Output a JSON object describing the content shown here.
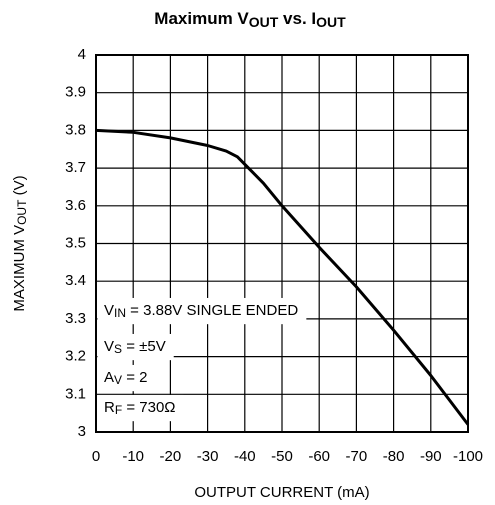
{
  "chart_data": {
    "type": "line",
    "title": [
      {
        "text": "Maximum V"
      },
      {
        "text": "OUT",
        "sub": true
      },
      {
        "text": " vs. I"
      },
      {
        "text": "OUT",
        "sub": true
      }
    ],
    "x_label": [
      {
        "text": "OUTPUT CURRENT (mA)"
      }
    ],
    "y_label": [
      {
        "text": "MAXIMUM V"
      },
      {
        "text": "OUT",
        "sub": true
      },
      {
        "text": " (V)"
      }
    ],
    "annotations": [
      [
        {
          "text": "V"
        },
        {
          "text": "IN",
          "sub": true
        },
        {
          "text": " = 3.88V SINGLE ENDED"
        }
      ],
      [
        {
          "text": "V"
        },
        {
          "text": "S",
          "sub": true
        },
        {
          "text": " = ±5V"
        }
      ],
      [
        {
          "text": "A"
        },
        {
          "text": "V",
          "sub": true
        },
        {
          "text": " = 2"
        }
      ],
      [
        {
          "text": "R"
        },
        {
          "text": "F",
          "sub": true
        },
        {
          "text": " = 730Ω"
        }
      ]
    ],
    "x": [
      0,
      -10,
      -20,
      -30,
      -35,
      -38,
      -40,
      -45,
      -50,
      -60,
      -70,
      -80,
      -90,
      -100
    ],
    "values": [
      3.8,
      3.795,
      3.78,
      3.76,
      3.745,
      3.73,
      3.71,
      3.66,
      3.6,
      3.49,
      3.385,
      3.27,
      3.15,
      3.02
    ],
    "color": "#000000",
    "xlim": [
      0,
      -100
    ],
    "xticks": [
      0,
      -10,
      -20,
      -30,
      -40,
      -50,
      -60,
      -70,
      -80,
      -90,
      -100
    ],
    "ylim": [
      3,
      4
    ],
    "yticks": [
      3,
      3.1,
      3.2,
      3.3,
      3.4,
      3.5,
      3.6,
      3.7,
      3.8,
      3.9,
      4
    ],
    "grid": true
  }
}
